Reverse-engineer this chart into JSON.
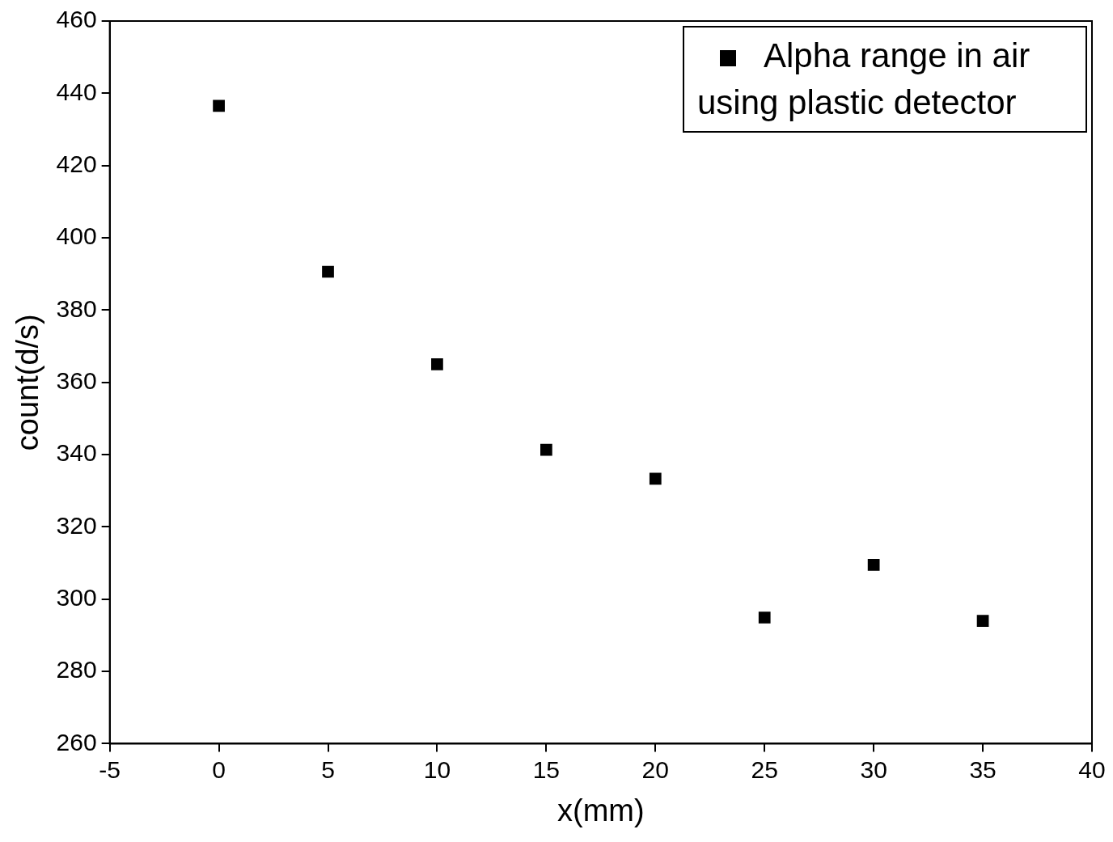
{
  "chart_data": {
    "type": "scatter",
    "xlabel": "x(mm)",
    "ylabel": "count(d/s)",
    "x": [
      0,
      5,
      10,
      15,
      20,
      25,
      30,
      35
    ],
    "series": [
      {
        "name": "Alpha range in air using plastic detector",
        "color": "#000000",
        "values": [
          436.5,
          390.6,
          365,
          341.3,
          333.3,
          294.9,
          309.5,
          294
        ]
      }
    ],
    "xlim": [
      -5,
      40
    ],
    "xticks": [
      -5,
      0,
      5,
      10,
      15,
      20,
      25,
      30,
      35,
      40
    ],
    "ylim": [
      260,
      460
    ],
    "yticks": [
      260,
      280,
      300,
      320,
      340,
      360,
      380,
      400,
      420,
      440,
      460
    ],
    "marker": "square",
    "legend": "top right",
    "grid": false
  }
}
